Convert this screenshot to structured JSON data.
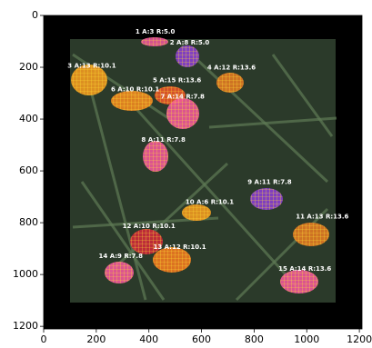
{
  "chart_data": {
    "type": "image",
    "xlim": [
      0,
      1210
    ],
    "ylim": [
      1210,
      0
    ],
    "xticks": [
      0,
      200,
      400,
      600,
      800,
      1000,
      1200
    ],
    "yticks": [
      0,
      200,
      400,
      600,
      800,
      1000,
      1200
    ],
    "annotations": [
      {
        "text": "1 A:3 R:5.0",
        "x": 424,
        "y": 64
      },
      {
        "text": "2 A:8 R:5.0",
        "x": 555,
        "y": 106
      },
      {
        "text": "3 A:13 R:10.1",
        "x": 183,
        "y": 194
      },
      {
        "text": "4 A:12 R:13.6",
        "x": 714,
        "y": 201
      },
      {
        "text": "5 A:15 R:13.6",
        "x": 507,
        "y": 251
      },
      {
        "text": "6 A:10 R:10.1",
        "x": 348,
        "y": 286
      },
      {
        "text": "7 A:14 R:7.8",
        "x": 528,
        "y": 314
      },
      {
        "text": "8 A:11 R:7.8",
        "x": 455,
        "y": 480
      },
      {
        "text": "9 A:11 R:7.8",
        "x": 859,
        "y": 643
      },
      {
        "text": "10 A:6 R:10.1",
        "x": 631,
        "y": 721
      },
      {
        "text": "11 A:13 R:13.6",
        "x": 1059,
        "y": 777
      },
      {
        "text": "12 A:10 R:10.1",
        "x": 400,
        "y": 813
      },
      {
        "text": "13 A:12 R:10.1",
        "x": 517,
        "y": 894
      },
      {
        "text": "14 A:9 R:7.8",
        "x": 293,
        "y": 929
      },
      {
        "text": "15 A:14 R:13.6",
        "x": 993,
        "y": 979
      }
    ]
  }
}
